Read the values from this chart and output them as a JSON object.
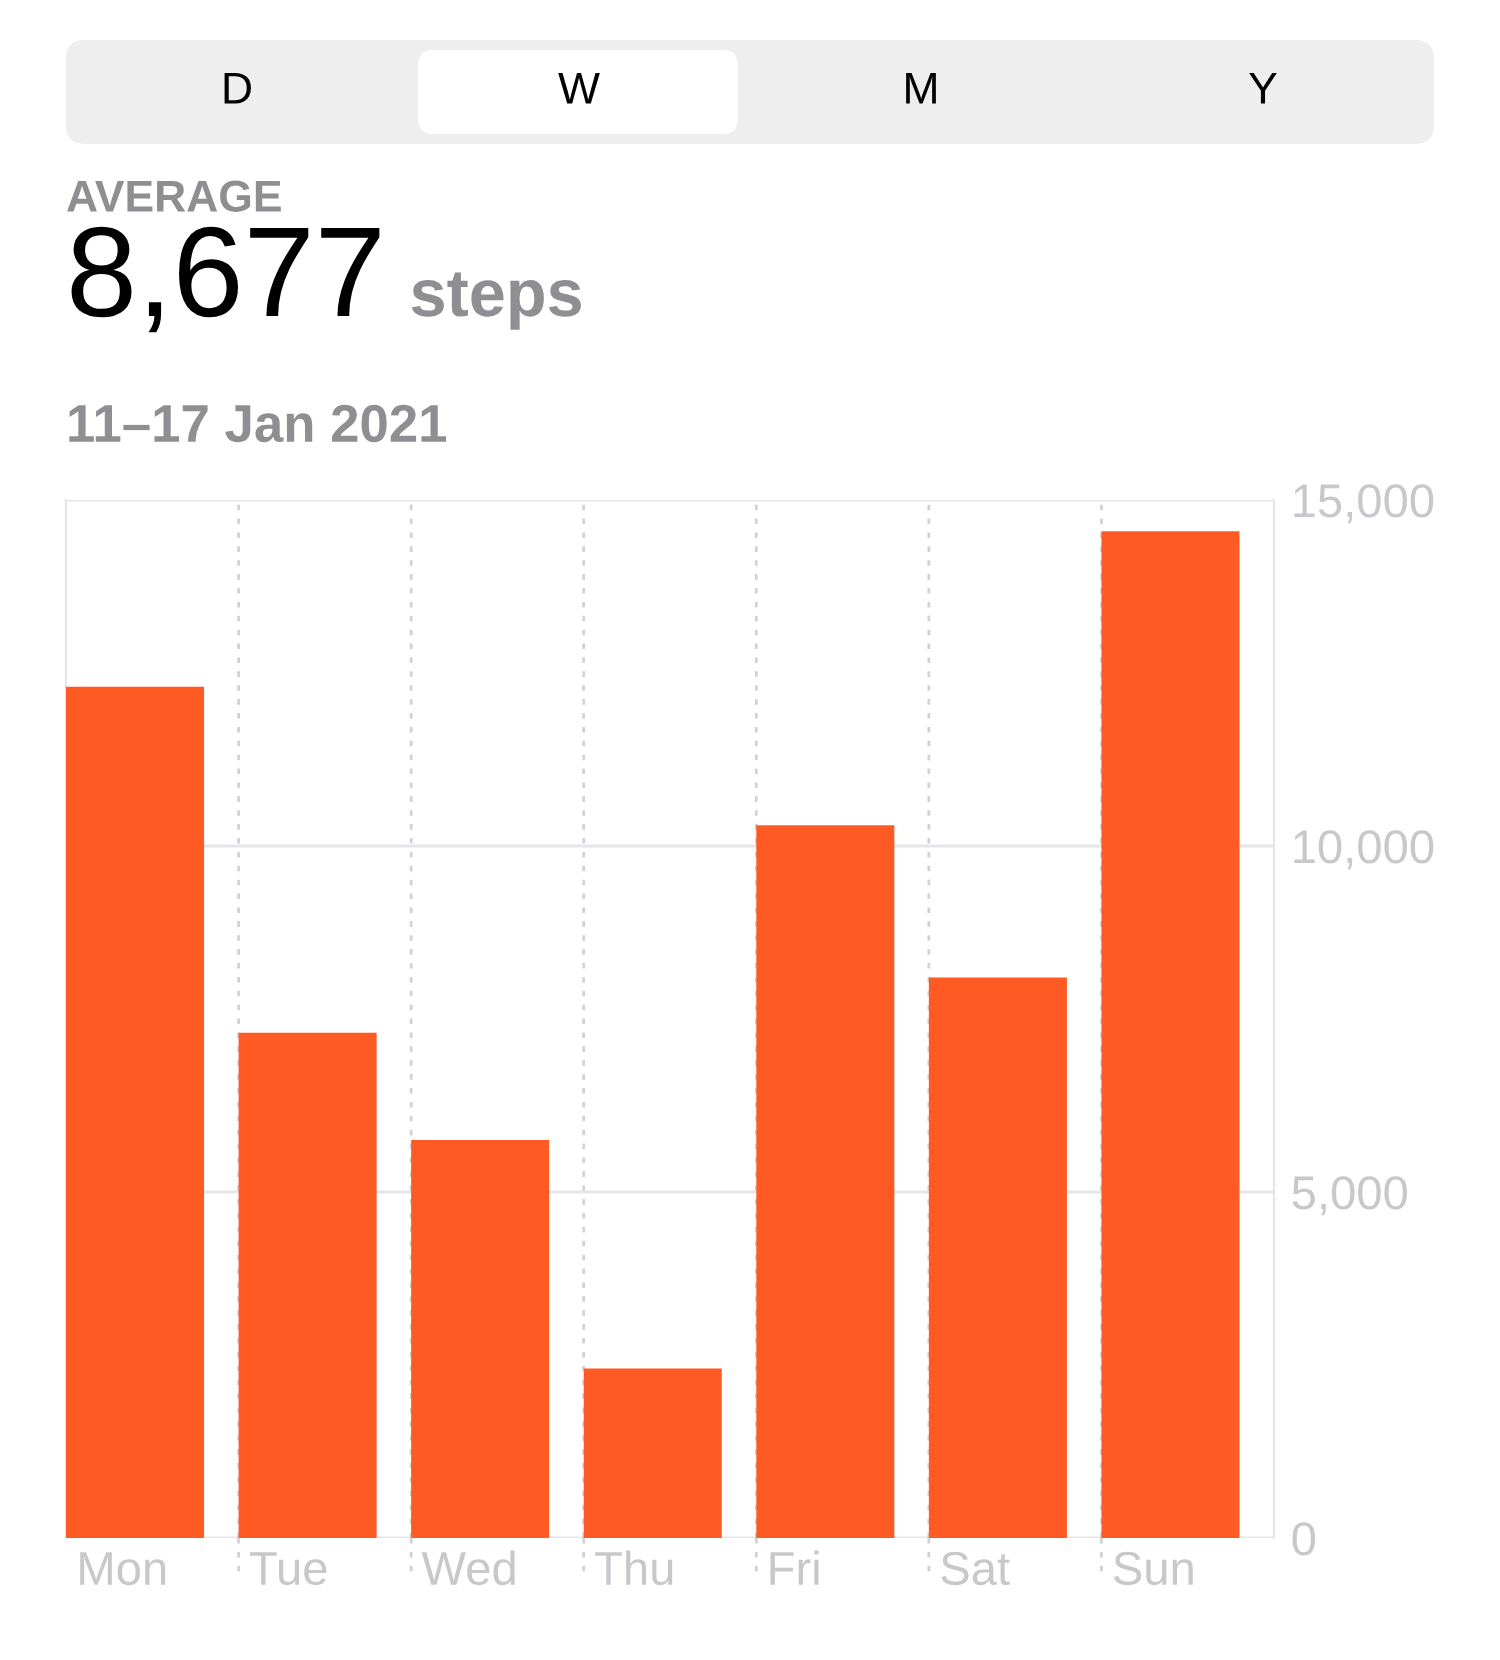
{
  "chart_data": {
    "type": "bar",
    "title": "8,677",
    "subtitle": "AVERAGE",
    "annotations": [
      "D",
      "W",
      "M",
      "Y",
      "steps",
      "11–17 Jan 2021"
    ],
    "categories": [
      "Mon",
      "Tue",
      "Wed",
      "Thu",
      "Fri",
      "Sat",
      "Sun"
    ],
    "values": [
      12300,
      7300,
      5750,
      2450,
      10300,
      8100,
      14550
    ],
    "color": "#ff5a24",
    "ylim": [
      0,
      15000
    ],
    "yticks": [
      {
        "value": 0,
        "label": "0"
      },
      {
        "value": 5000,
        "label": "5,000"
      },
      {
        "value": 10000,
        "label": "10,000"
      },
      {
        "value": 15000,
        "label": "15,000"
      }
    ],
    "grid": true
  }
}
